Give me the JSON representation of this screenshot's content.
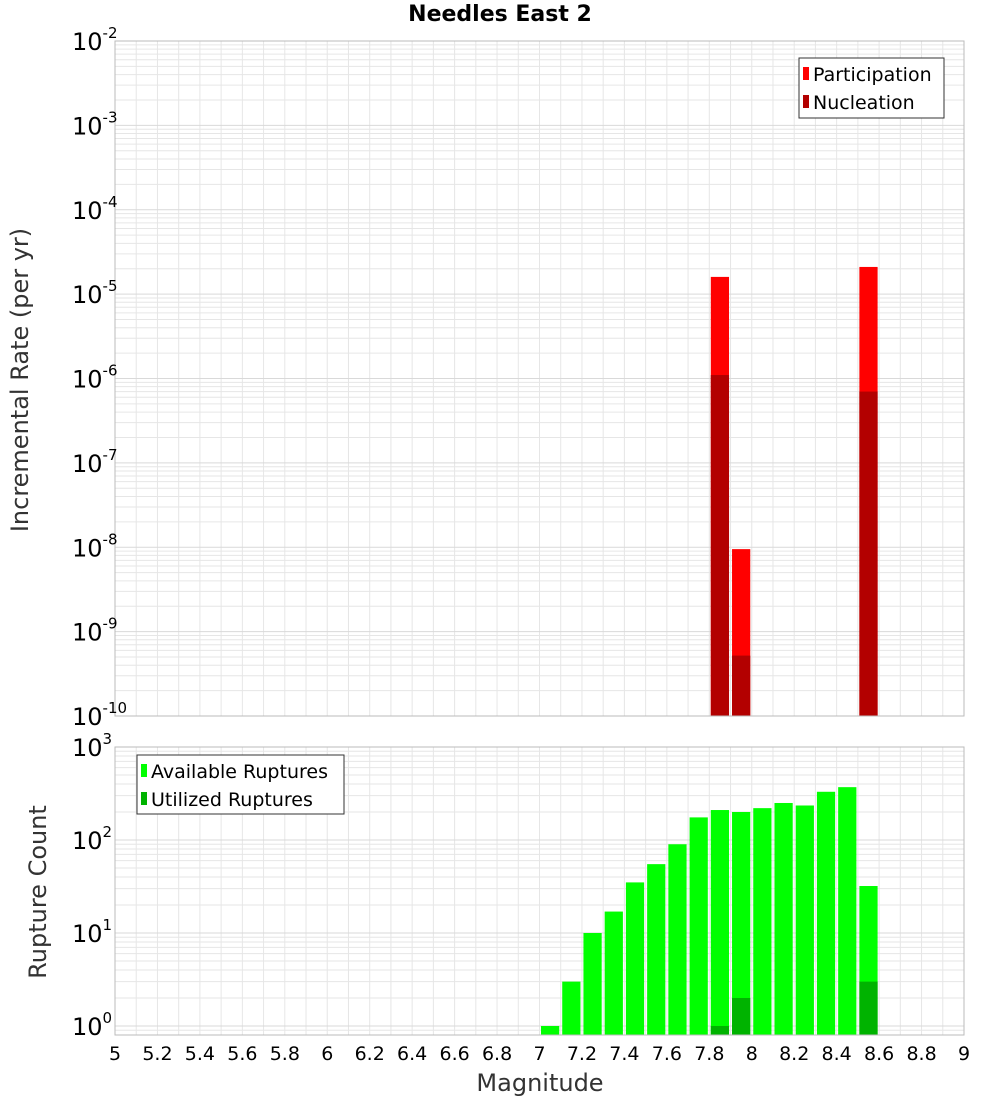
{
  "title": "Needles East 2",
  "colors": {
    "participation": "#ff0000",
    "nucleation": "#b30000",
    "available": "#00ff00",
    "utilized": "#00b300",
    "grid": "#e6e6e6",
    "frame": "#bbbbbb"
  },
  "chart_data": [
    {
      "type": "bar",
      "title": "Needles East 2",
      "xlabel": "Magnitude",
      "ylabel": "Incremental Rate (per yr)",
      "yscale": "log",
      "xlim": [
        5,
        9
      ],
      "ylim": [
        1e-10,
        0.01
      ],
      "y_ticks": [
        {
          "base": "10",
          "exp": "-2",
          "value": 0.01
        },
        {
          "base": "10",
          "exp": "-3",
          "value": 0.001
        },
        {
          "base": "10",
          "exp": "-4",
          "value": 0.0001
        },
        {
          "base": "10",
          "exp": "-5",
          "value": 1e-05
        },
        {
          "base": "10",
          "exp": "-6",
          "value": 1e-06
        },
        {
          "base": "10",
          "exp": "-7",
          "value": 1e-07
        },
        {
          "base": "10",
          "exp": "-8",
          "value": 1e-08
        },
        {
          "base": "10",
          "exp": "-9",
          "value": 1e-09
        },
        {
          "base": "10",
          "exp": "-10",
          "value": 1e-10
        }
      ],
      "legend": {
        "position": "top-right",
        "entries": [
          {
            "label": "Participation",
            "color": "#ff0000"
          },
          {
            "label": "Nucleation",
            "color": "#b30000"
          }
        ]
      },
      "series": [
        {
          "name": "Participation",
          "color": "#ff0000",
          "x": [
            7.85,
            7.95,
            8.55
          ],
          "values": [
            1.6e-05,
            9.5e-09,
            2.1e-05
          ]
        },
        {
          "name": "Nucleation",
          "color": "#b30000",
          "x": [
            7.85,
            7.95,
            8.55
          ],
          "values": [
            1.1e-06,
            5.2e-10,
            7e-07
          ]
        }
      ]
    },
    {
      "type": "bar",
      "xlabel": "Magnitude",
      "ylabel": "Rupture Count",
      "yscale": "log",
      "xlim": [
        5,
        9
      ],
      "ylim": [
        0.8,
        1000
      ],
      "y_ticks": [
        {
          "base": "10",
          "exp": "3",
          "value": 1000
        },
        {
          "base": "10",
          "exp": "2",
          "value": 100
        },
        {
          "base": "10",
          "exp": "1",
          "value": 10
        },
        {
          "base": "10",
          "exp": "0",
          "value": 1
        }
      ],
      "x_ticks": [
        "5",
        "5.2",
        "5.4",
        "5.6",
        "5.8",
        "6",
        "6.2",
        "6.4",
        "6.6",
        "6.8",
        "7",
        "7.2",
        "7.4",
        "7.6",
        "7.8",
        "8",
        "8.2",
        "8.4",
        "8.6",
        "8.8",
        "9"
      ],
      "legend": {
        "position": "top-left",
        "entries": [
          {
            "label": "Available Ruptures",
            "color": "#00ff00"
          },
          {
            "label": "Utilized Ruptures",
            "color": "#00b300"
          }
        ]
      },
      "series": [
        {
          "name": "Available Ruptures",
          "color": "#00ff00",
          "x": [
            7.05,
            7.15,
            7.25,
            7.35,
            7.45,
            7.55,
            7.65,
            7.75,
            7.85,
            7.95,
            8.05,
            8.15,
            8.25,
            8.35,
            8.45,
            8.55
          ],
          "values": [
            1,
            3,
            10,
            17,
            35,
            55,
            90,
            175,
            210,
            200,
            220,
            250,
            235,
            330,
            370,
            32
          ]
        },
        {
          "name": "Utilized Ruptures",
          "color": "#00b300",
          "x": [
            7.85,
            7.95,
            8.55
          ],
          "values": [
            1,
            2,
            3
          ]
        }
      ]
    }
  ]
}
